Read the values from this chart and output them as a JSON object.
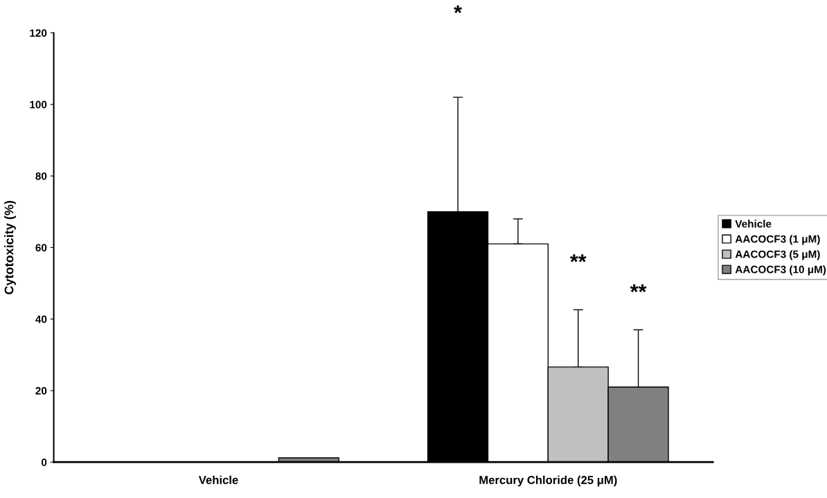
{
  "chart_data": {
    "type": "bar",
    "ylabel": "Cytotoxicity (%)",
    "categories": [
      "Vehicle",
      "Mercury Chloride (25 μM)"
    ],
    "series": [
      {
        "name": "Vehicle",
        "color": "#000000",
        "values": [
          0,
          70
        ],
        "errors": [
          null,
          [
            70,
            102
          ]
        ]
      },
      {
        "name": "AACOCF3 (1 μM)",
        "color": "#ffffff",
        "values": [
          0,
          61
        ],
        "errors": [
          null,
          [
            61,
            68
          ]
        ]
      },
      {
        "name": "AACOCF3 (5 μM)",
        "color": "#c0c0c0",
        "values": [
          0,
          26.6
        ],
        "errors": [
          null,
          [
            26.6,
            42.6
          ]
        ]
      },
      {
        "name": "AACOCF3 (10 μM)",
        "color": "#808080",
        "values": [
          1.2,
          21
        ],
        "errors": [
          null,
          [
            21,
            37
          ]
        ]
      }
    ],
    "annotations": [
      "*",
      "**",
      "**"
    ],
    "ylim": [
      0,
      120
    ],
    "yticks": [
      0,
      20,
      40,
      60,
      80,
      100,
      120
    ],
    "grid": false,
    "legend": "right"
  }
}
